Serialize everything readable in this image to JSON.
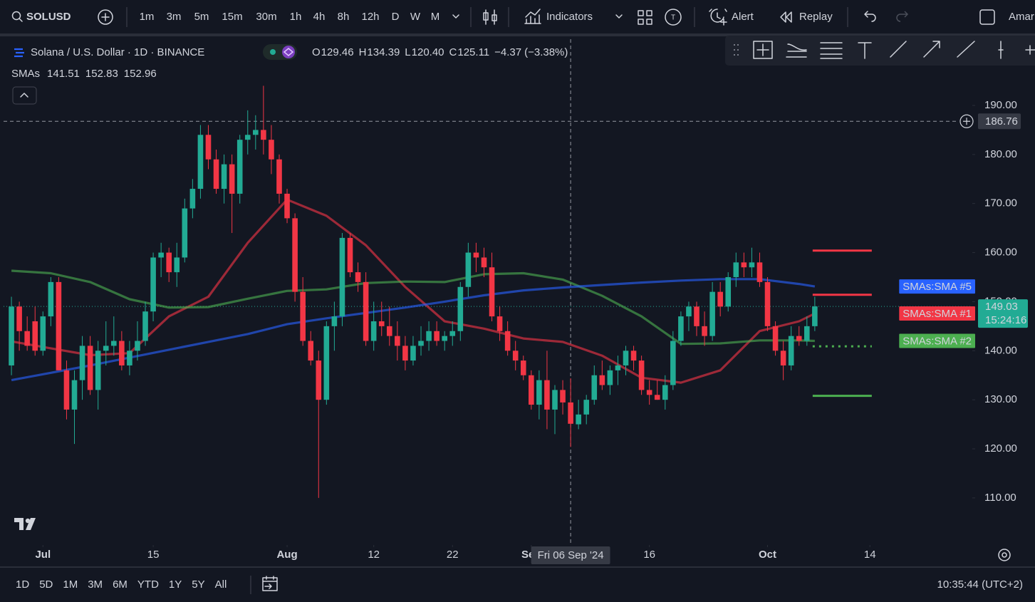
{
  "toolbar": {
    "symbol": "SOLUSD",
    "intervals": [
      {
        "label": "1m"
      },
      {
        "label": "3m"
      },
      {
        "label": "5m"
      },
      {
        "label": "15m"
      },
      {
        "label": "30m"
      },
      {
        "label": "1h"
      },
      {
        "label": "4h"
      },
      {
        "label": "8h"
      },
      {
        "label": "12h"
      },
      {
        "label": "D",
        "active": true
      },
      {
        "label": "W"
      },
      {
        "label": "M"
      }
    ],
    "indicators": "Indicators",
    "alert": "Alert",
    "replay": "Replay",
    "user": "Amar"
  },
  "chart_data": {
    "type": "candlestick",
    "title": "Solana / U.S. Dollar · 1D · BINANCE",
    "ohlc": [
      {
        "key": "O",
        "value": 129.46
      },
      {
        "key": "H",
        "value": 134.39
      },
      {
        "key": "L",
        "value": 120.4,
        "label": "120.40"
      },
      {
        "key": "C",
        "value": 125.11
      }
    ],
    "change": {
      "value": -4.37,
      "label": "−4.37"
    },
    "change_pct": {
      "value": -3.38,
      "label": "(−3.38%)"
    },
    "legend_title": "SMAs",
    "up_color": "#22ab94",
    "down_color": "#f23645",
    "x": [
      "2024-06-27",
      "2024-06-28",
      "2024-06-29",
      "2024-06-30",
      "2024-07-01",
      "2024-07-02",
      "2024-07-03",
      "2024-07-04",
      "2024-07-05",
      "2024-07-06",
      "2024-07-07",
      "2024-07-08",
      "2024-07-09",
      "2024-07-10",
      "2024-07-11",
      "2024-07-12",
      "2024-07-13",
      "2024-07-14",
      "2024-07-15",
      "2024-07-16",
      "2024-07-17",
      "2024-07-18",
      "2024-07-19",
      "2024-07-20",
      "2024-07-21",
      "2024-07-22",
      "2024-07-23",
      "2024-07-24",
      "2024-07-25",
      "2024-07-26",
      "2024-07-27",
      "2024-07-28",
      "2024-07-29",
      "2024-07-30",
      "2024-07-31",
      "2024-08-01",
      "2024-08-02",
      "2024-08-03",
      "2024-08-04",
      "2024-08-05",
      "2024-08-06",
      "2024-08-07",
      "2024-08-08",
      "2024-08-09",
      "2024-08-10",
      "2024-08-11",
      "2024-08-12",
      "2024-08-13",
      "2024-08-14",
      "2024-08-15",
      "2024-08-16",
      "2024-08-17",
      "2024-08-18",
      "2024-08-19",
      "2024-08-20",
      "2024-08-21",
      "2024-08-22",
      "2024-08-23",
      "2024-08-24",
      "2024-08-25",
      "2024-08-26",
      "2024-08-27",
      "2024-08-28",
      "2024-08-29",
      "2024-08-30",
      "2024-08-31",
      "2024-09-01",
      "2024-09-02",
      "2024-09-03",
      "2024-09-04",
      "2024-09-05",
      "2024-09-06",
      "2024-09-07",
      "2024-09-08",
      "2024-09-09",
      "2024-09-10",
      "2024-09-11",
      "2024-09-12",
      "2024-09-13",
      "2024-09-14",
      "2024-09-15",
      "2024-09-16",
      "2024-09-17",
      "2024-09-18",
      "2024-09-19",
      "2024-09-20",
      "2024-09-21",
      "2024-09-22",
      "2024-09-23",
      "2024-09-24",
      "2024-09-25",
      "2024-09-26",
      "2024-09-27",
      "2024-09-28",
      "2024-09-29",
      "2024-09-30",
      "2024-10-01",
      "2024-10-02",
      "2024-10-03",
      "2024-10-04",
      "2024-10-05",
      "2024-10-06",
      "2024-10-07"
    ],
    "open": [
      137,
      149,
      144,
      146,
      140,
      147,
      154,
      136,
      128,
      134,
      141,
      132,
      140,
      141,
      142,
      137,
      140,
      142,
      148,
      159,
      160,
      156,
      159,
      169,
      173,
      184,
      179,
      173,
      178,
      172,
      183,
      184,
      185,
      183,
      179,
      172,
      167,
      152,
      142,
      138,
      130,
      145,
      147,
      163,
      156,
      154,
      142,
      146,
      145,
      143,
      141,
      138,
      141,
      142,
      144,
      142,
      143,
      144,
      153,
      160,
      159,
      157,
      147,
      144,
      140,
      138,
      135,
      129,
      134,
      128,
      132,
      129.46,
      125,
      127,
      130,
      135,
      133,
      136,
      137,
      140,
      138,
      132,
      131,
      130,
      133,
      142,
      147,
      149,
      145,
      143,
      152,
      149,
      155,
      158,
      157,
      158,
      154,
      145,
      140,
      137,
      143,
      142,
      145
    ],
    "high": [
      151,
      150,
      147,
      149,
      148,
      155,
      155,
      138,
      136,
      143,
      143,
      142,
      146,
      147,
      144,
      142,
      146,
      150,
      160,
      162,
      161,
      162,
      171,
      175,
      186,
      186,
      181,
      180,
      180,
      184,
      189,
      188,
      194,
      186,
      180,
      173,
      168,
      155,
      144,
      140,
      146,
      150,
      164,
      164,
      158,
      156,
      150,
      150,
      149,
      146,
      143,
      143,
      145,
      146,
      146,
      144,
      146,
      154,
      162,
      162,
      161,
      160,
      149,
      146,
      142,
      139,
      136,
      136,
      140,
      133,
      134,
      134.39,
      130,
      131,
      137,
      138,
      137,
      139,
      141,
      141,
      139,
      134,
      134,
      135,
      144,
      148,
      150,
      150,
      148,
      154,
      154,
      156,
      160,
      160,
      161,
      160,
      155,
      146,
      142,
      145,
      145,
      147,
      151
    ],
    "low": [
      135,
      140,
      140,
      139,
      139,
      145,
      136,
      126,
      121,
      130,
      131,
      128,
      137,
      139,
      136,
      135,
      138,
      141,
      146,
      155,
      154,
      153,
      158,
      167,
      171,
      177,
      172,
      170,
      164,
      170,
      180,
      181,
      180,
      176,
      170,
      166,
      150,
      141,
      137,
      110,
      129,
      140,
      145,
      155,
      152,
      141,
      140,
      143,
      141,
      138,
      136,
      137,
      139,
      140,
      141,
      140,
      141,
      142,
      151,
      156,
      155,
      146,
      142,
      139,
      136,
      134,
      128,
      126,
      124,
      123,
      127,
      120.4,
      124,
      125,
      129,
      132,
      131,
      133,
      135,
      136,
      131,
      129,
      130,
      128,
      132,
      141,
      144,
      143,
      141,
      142,
      147,
      148,
      153,
      155,
      155,
      153,
      144,
      139,
      134,
      136,
      141,
      141,
      144
    ],
    "close": [
      149,
      144,
      141,
      140,
      147,
      154,
      136,
      128,
      134,
      141,
      132,
      140,
      141,
      142,
      137,
      140,
      142,
      148,
      159,
      160,
      156,
      159,
      169,
      173,
      184,
      179,
      173,
      178,
      172,
      183,
      184,
      185,
      183,
      179,
      172,
      167,
      152,
      142,
      138,
      130,
      145,
      147,
      163,
      156,
      154,
      142,
      146,
      145,
      143,
      141,
      138,
      141,
      142,
      144,
      142,
      143,
      144,
      153,
      160,
      159,
      157,
      147,
      144,
      140,
      138,
      135,
      129,
      134,
      128,
      132,
      129.46,
      125.11,
      127,
      130,
      135,
      133,
      136,
      137,
      140,
      138,
      132,
      131,
      130,
      133,
      142,
      147,
      149,
      145,
      143,
      152,
      149,
      155,
      158,
      157,
      158,
      154,
      145,
      140,
      137,
      143,
      142,
      145,
      149.03
    ],
    "series": [
      {
        "name": "SMAs:SMA #1",
        "color": "#f23645",
        "legend_value": 141.51,
        "x": [
          "2024-06-27",
          "2024-07-02",
          "2024-07-07",
          "2024-07-12",
          "2024-07-17",
          "2024-07-22",
          "2024-07-27",
          "2024-08-01",
          "2024-08-06",
          "2024-08-11",
          "2024-08-16",
          "2024-08-21",
          "2024-08-26",
          "2024-08-31",
          "2024-09-05",
          "2024-09-10",
          "2024-09-15",
          "2024-09-20",
          "2024-09-25",
          "2024-09-30",
          "2024-10-05",
          "2024-10-07"
        ],
        "values": [
          141.9,
          140.5,
          139.1,
          139.5,
          147,
          151,
          162,
          170.8,
          167.5,
          161.5,
          153,
          146,
          144.5,
          142.5,
          141.8,
          139,
          134.5,
          133.5,
          136,
          144,
          146,
          147.6
        ]
      },
      {
        "name": "SMAs:SMA #2",
        "color": "#4caf50",
        "legend_value": 152.83,
        "x": [
          "2024-06-27",
          "2024-07-02",
          "2024-07-07",
          "2024-07-12",
          "2024-07-17",
          "2024-07-22",
          "2024-07-27",
          "2024-08-01",
          "2024-08-06",
          "2024-08-11",
          "2024-08-16",
          "2024-08-21",
          "2024-08-26",
          "2024-08-31",
          "2024-09-05",
          "2024-09-10",
          "2024-09-15",
          "2024-09-20",
          "2024-09-25",
          "2024-09-30",
          "2024-10-05",
          "2024-10-07"
        ],
        "values": [
          156.3,
          155.8,
          154,
          150.5,
          148.8,
          148.9,
          150.6,
          152.2,
          152.5,
          153.8,
          154.1,
          154,
          155.6,
          155.8,
          154.5,
          151.2,
          147,
          141.4,
          141.5,
          142.1,
          142.1,
          142
        ]
      },
      {
        "name": "SMAs:SMA #5",
        "color": "#2962ff",
        "legend_value": 152.96,
        "x": [
          "2024-06-27",
          "2024-07-02",
          "2024-07-07",
          "2024-07-12",
          "2024-07-17",
          "2024-07-22",
          "2024-07-27",
          "2024-08-01",
          "2024-08-06",
          "2024-08-11",
          "2024-08-16",
          "2024-08-21",
          "2024-08-26",
          "2024-08-31",
          "2024-09-05",
          "2024-09-10",
          "2024-09-15",
          "2024-09-20",
          "2024-09-25",
          "2024-09-30",
          "2024-10-05",
          "2024-10-07"
        ],
        "values": [
          134,
          135.5,
          137,
          138.6,
          140.2,
          141.8,
          143.4,
          145.4,
          146.6,
          147.7,
          148.8,
          150,
          151.3,
          152.3,
          152.9,
          153.4,
          153.9,
          154.3,
          154.6,
          154.6,
          153.6,
          153.1
        ]
      }
    ],
    "levels": [
      {
        "value": 160.4,
        "color": "#f23645"
      },
      {
        "value": 151.4,
        "color": "#f23645"
      },
      {
        "value": 140.9,
        "color": "#4caf50",
        "dotted": true
      },
      {
        "value": 130.8,
        "color": "#4caf50"
      }
    ],
    "last_price": 149.03,
    "countdown": "15:24:16",
    "crosshair": {
      "x": "2024-09-06",
      "x_label": "Fri 06 Sep '24",
      "y": 186.76
    },
    "xlim": [
      "2024-06-26",
      "2024-10-27"
    ],
    "xticks": [
      {
        "value": "2024-07-01",
        "label": "Jul"
      },
      {
        "value": "2024-07-15",
        "label": "15"
      },
      {
        "value": "2024-08-01",
        "label": "Aug"
      },
      {
        "value": "2024-08-12",
        "label": "12"
      },
      {
        "value": "2024-08-22",
        "label": "22"
      },
      {
        "value": "2024-09-01",
        "label": "Sep"
      },
      {
        "value": "2024-09-16",
        "label": "16"
      },
      {
        "value": "2024-10-01",
        "label": "Oct"
      },
      {
        "value": "2024-10-14",
        "label": "14"
      }
    ],
    "ylim": [
      100.4,
      203.5
    ],
    "yticks": [
      {
        "value": 110,
        "label": "110.00"
      },
      {
        "value": 120,
        "label": "120.00"
      },
      {
        "value": 130,
        "label": "130.00"
      },
      {
        "value": 140,
        "label": "140.00"
      },
      {
        "value": 150,
        "label": "150.00"
      },
      {
        "value": 160,
        "label": "160.00"
      },
      {
        "value": 170,
        "label": "170.00"
      },
      {
        "value": 180,
        "label": "180.00"
      },
      {
        "value": 190,
        "label": "190.00"
      }
    ],
    "grid": false
  },
  "bottom_bar": {
    "ranges": [
      "1D",
      "5D",
      "1M",
      "3M",
      "6M",
      "YTD",
      "1Y",
      "5Y",
      "All"
    ],
    "clock": "10:35:44 (UTC+2)"
  }
}
